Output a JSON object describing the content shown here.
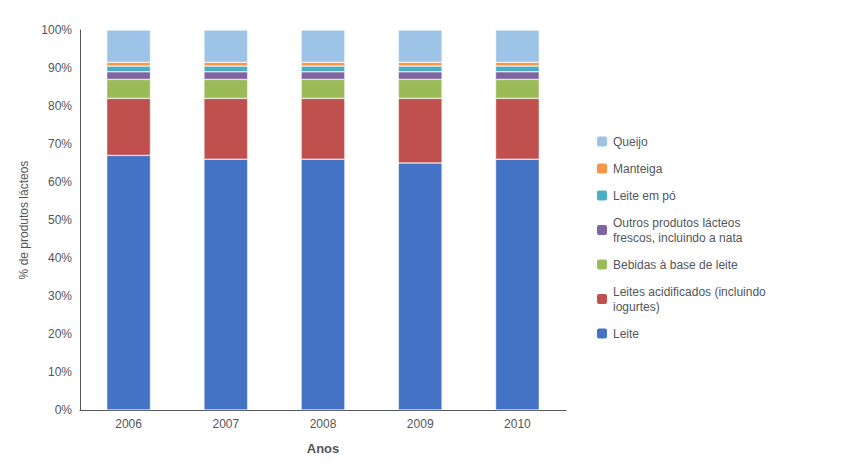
{
  "chart_data": {
    "type": "bar",
    "stacked": true,
    "xlabel": "Anos",
    "ylabel": "% de produtos lácteos",
    "categories": [
      "2006",
      "2007",
      "2008",
      "2009",
      "2010"
    ],
    "series": [
      {
        "name": "Leite",
        "color": "#4472C4",
        "values": [
          67.0,
          66.0,
          66.0,
          65.0,
          66.0
        ]
      },
      {
        "name": "Leites acidificados (incluindo\niogurtes)",
        "color": "#C0504D",
        "values": [
          15.0,
          16.0,
          16.0,
          17.0,
          16.0
        ]
      },
      {
        "name": "Bebidas à base de leite",
        "color": "#9BBB59",
        "values": [
          5.0,
          5.0,
          5.0,
          5.0,
          5.0
        ]
      },
      {
        "name": "Outros produtos lácteos\nfrescos, incluindo a nata",
        "color": "#8064A2",
        "values": [
          2.0,
          2.0,
          2.0,
          2.0,
          2.0
        ]
      },
      {
        "name": "Leite em pó",
        "color": "#4BACC6",
        "values": [
          1.5,
          1.5,
          1.5,
          1.5,
          1.5
        ]
      },
      {
        "name": "Manteiga",
        "color": "#F79646",
        "values": [
          1.0,
          1.0,
          1.0,
          1.0,
          1.0
        ]
      },
      {
        "name": "Queijo",
        "color": "#9DC3E6",
        "values": [
          8.5,
          8.5,
          8.5,
          8.5,
          8.5
        ]
      }
    ],
    "ylim": [
      0,
      100
    ],
    "yticks": [
      {
        "value": 0,
        "label": "0%"
      },
      {
        "value": 10,
        "label": "10%"
      },
      {
        "value": 20,
        "label": "20%"
      },
      {
        "value": 30,
        "label": "30%"
      },
      {
        "value": 40,
        "label": "40%"
      },
      {
        "value": 50,
        "label": "50%"
      },
      {
        "value": 60,
        "label": "60%"
      },
      {
        "value": 70,
        "label": "70%"
      },
      {
        "value": 80,
        "label": "80%"
      },
      {
        "value": 90,
        "label": "90%"
      },
      {
        "value": 100,
        "label": "100%"
      }
    ],
    "grid": false,
    "legend": "right"
  }
}
